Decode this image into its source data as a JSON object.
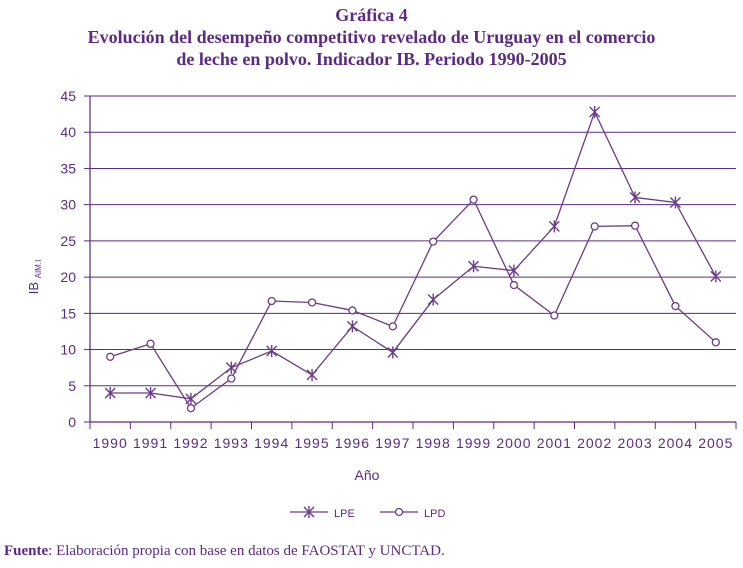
{
  "header": {
    "title": "Gráfica 4",
    "subtitle_line1": "Evolución del desempeño competitivo revelado de Uruguay en el comercio",
    "subtitle_line2": "de leche en polvo. Indicador IB. Periodo 1990-2005"
  },
  "source": {
    "label": "Fuente",
    "text": ": Elaboración propia con base en datos de FAOSTAT y UNCTAD."
  },
  "colors": {
    "accent": "#5b2a86",
    "line": "#6a3c8c"
  },
  "chart_data": {
    "type": "line",
    "title": "",
    "xlabel": "Año",
    "ylabel": "IB",
    "ylabel_sub": "AIM.I",
    "ylim": [
      0,
      45
    ],
    "yticks": [
      "0",
      "5",
      "10",
      "15",
      "20",
      "25",
      "30",
      "35",
      "40",
      "45"
    ],
    "categories": [
      "1990",
      "1991",
      "1992",
      "1993",
      "1994",
      "1995",
      "1996",
      "1997",
      "1998",
      "1999",
      "2000",
      "2001",
      "2002",
      "2003",
      "2004",
      "2005"
    ],
    "grid": true,
    "legend_position": "bottom",
    "series": [
      {
        "name": "LPE",
        "marker": "asterisk",
        "values": [
          4.0,
          4.0,
          3.2,
          7.5,
          9.8,
          6.5,
          13.2,
          9.6,
          16.9,
          21.5,
          20.9,
          27.0,
          42.8,
          31.0,
          30.3,
          20.1
        ]
      },
      {
        "name": "LPD",
        "marker": "circle",
        "values": [
          9.0,
          10.8,
          1.9,
          6.0,
          16.7,
          16.5,
          15.4,
          13.2,
          24.9,
          30.7,
          18.9,
          14.7,
          27.0,
          27.1,
          16.0,
          11.0
        ]
      }
    ]
  }
}
